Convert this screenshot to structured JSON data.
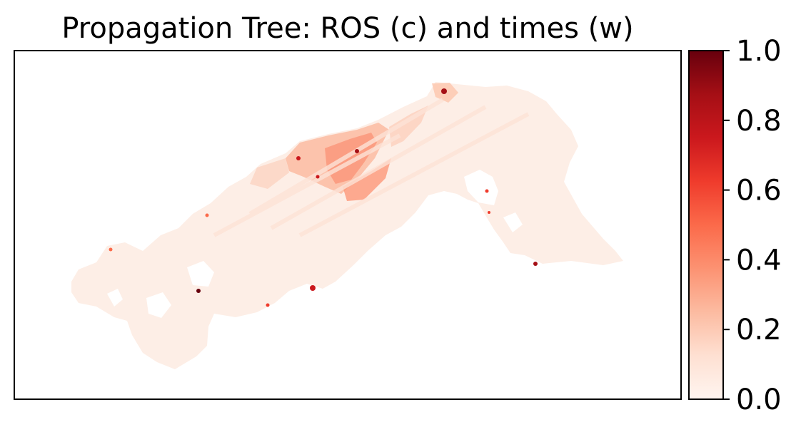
{
  "chart_data": {
    "type": "heatmap",
    "title": "Propagation Tree: ROS (c) and times (w)",
    "xlabel": "",
    "ylabel": "",
    "colormap": "Reds",
    "colorbar": {
      "range": [
        0.0,
        1.0
      ],
      "ticks": [
        "0.0",
        "0.2",
        "0.4",
        "0.6",
        "0.8",
        "1.0"
      ],
      "colors": [
        "#fff5f0",
        "#fee0d2",
        "#fcbba1",
        "#fc9272",
        "#fb6a4a",
        "#ef3b2c",
        "#cb181d",
        "#a50f15",
        "#67000d"
      ]
    },
    "axes_ticks_visible": false,
    "summary": {
      "typical_value": 0.05,
      "max_value": 1.0,
      "high_region_values": [
        0.3,
        0.4,
        0.5
      ]
    }
  }
}
